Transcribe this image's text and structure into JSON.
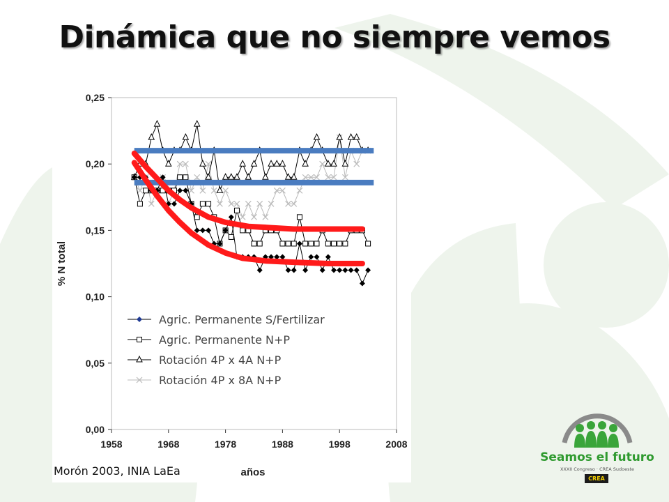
{
  "slide": {
    "title": "Dinámica que no siempre vemos",
    "source": "Morón 2003, INIA LaEa"
  },
  "logo": {
    "name": "Seamos el futuro",
    "subtitle": "XXXII Congreso · CREA Sudoeste",
    "badge": "CREA"
  },
  "chart_data": {
    "type": "line",
    "title": "",
    "xlabel": "años",
    "ylabel": "% N total",
    "xlim": [
      1958,
      2008
    ],
    "ylim": [
      0,
      0.25
    ],
    "x_ticks": [
      1958,
      1968,
      1978,
      1988,
      1998,
      2008
    ],
    "y_ticks": [
      "0,00",
      "0,05",
      "0,10",
      "0,15",
      "0,20",
      "0,25"
    ],
    "legend_position": "bottom-left",
    "series": [
      {
        "name": "Agric. Permanente S/Fertilizar",
        "marker": "diamond-filled",
        "color": "#000000",
        "legend_marker_color": "#1f3a93",
        "x": [
          1962,
          1963,
          1964,
          1965,
          1966,
          1967,
          1968,
          1969,
          1970,
          1971,
          1972,
          1973,
          1974,
          1975,
          1976,
          1977,
          1978,
          1979,
          1980,
          1981,
          1982,
          1983,
          1984,
          1985,
          1986,
          1987,
          1988,
          1989,
          1990,
          1991,
          1992,
          1993,
          1994,
          1995,
          1996,
          1997,
          1998,
          1999,
          2000,
          2001,
          2002,
          2003
        ],
        "values": [
          0.19,
          0.19,
          0.19,
          0.18,
          0.18,
          0.19,
          0.17,
          0.17,
          0.18,
          0.18,
          0.17,
          0.15,
          0.15,
          0.15,
          0.14,
          0.14,
          0.15,
          0.16,
          0.13,
          0.13,
          0.13,
          0.13,
          0.12,
          0.13,
          0.13,
          0.13,
          0.13,
          0.12,
          0.12,
          0.14,
          0.12,
          0.13,
          0.13,
          0.12,
          0.13,
          0.12,
          0.12,
          0.12,
          0.12,
          0.12,
          0.11,
          0.12
        ]
      },
      {
        "name": "Agric. Permanente N+P",
        "marker": "square-open",
        "color": "#000000",
        "x": [
          1962,
          1963,
          1964,
          1965,
          1966,
          1967,
          1968,
          1969,
          1970,
          1971,
          1972,
          1973,
          1974,
          1975,
          1976,
          1977,
          1978,
          1979,
          1980,
          1981,
          1982,
          1983,
          1984,
          1985,
          1986,
          1987,
          1988,
          1989,
          1990,
          1991,
          1992,
          1993,
          1994,
          1995,
          1996,
          1997,
          1998,
          1999,
          2000,
          2001,
          2002,
          2003
        ],
        "values": [
          0.19,
          0.17,
          0.18,
          0.18,
          0.18,
          0.18,
          0.18,
          0.18,
          0.19,
          0.19,
          0.17,
          0.16,
          0.17,
          0.17,
          0.16,
          0.14,
          0.15,
          0.145,
          0.165,
          0.15,
          0.15,
          0.14,
          0.14,
          0.15,
          0.15,
          0.15,
          0.14,
          0.14,
          0.14,
          0.16,
          0.14,
          0.14,
          0.14,
          0.15,
          0.14,
          0.14,
          0.14,
          0.14,
          0.15,
          0.15,
          0.15,
          0.14
        ]
      },
      {
        "name": "Rotación 4P x 4A N+P",
        "marker": "triangle-open",
        "color": "#000000",
        "x": [
          1962,
          1963,
          1964,
          1965,
          1966,
          1967,
          1968,
          1969,
          1970,
          1971,
          1972,
          1973,
          1974,
          1975,
          1976,
          1977,
          1978,
          1979,
          1980,
          1981,
          1982,
          1983,
          1984,
          1985,
          1986,
          1987,
          1988,
          1989,
          1990,
          1991,
          1992,
          1993,
          1994,
          1995,
          1996,
          1997,
          1998,
          1999,
          2000,
          2001,
          2002,
          2003
        ],
        "values": [
          0.19,
          0.2,
          0.2,
          0.22,
          0.23,
          0.21,
          0.2,
          0.21,
          0.21,
          0.22,
          0.21,
          0.23,
          0.2,
          0.19,
          0.21,
          0.18,
          0.19,
          0.19,
          0.19,
          0.2,
          0.19,
          0.2,
          0.21,
          0.19,
          0.2,
          0.2,
          0.2,
          0.19,
          0.19,
          0.21,
          0.2,
          0.21,
          0.22,
          0.21,
          0.2,
          0.2,
          0.22,
          0.2,
          0.22,
          0.22,
          0.21,
          0.21
        ]
      },
      {
        "name": "Rotación 4P x 8A N+P",
        "marker": "x",
        "color": "#bbbbbb",
        "x": [
          1962,
          1963,
          1964,
          1965,
          1966,
          1967,
          1968,
          1969,
          1970,
          1971,
          1972,
          1973,
          1974,
          1975,
          1976,
          1977,
          1978,
          1979,
          1980,
          1981,
          1982,
          1983,
          1984,
          1985,
          1986,
          1987,
          1988,
          1989,
          1990,
          1991,
          1992,
          1993,
          1994,
          1995,
          1996,
          1997,
          1998,
          1999,
          2000,
          2001,
          2002,
          2003
        ],
        "values": [
          0.19,
          0.18,
          0.19,
          0.17,
          0.18,
          0.19,
          0.17,
          0.18,
          0.2,
          0.2,
          0.18,
          0.19,
          0.18,
          0.2,
          0.18,
          0.17,
          0.18,
          0.17,
          0.17,
          0.16,
          0.17,
          0.16,
          0.17,
          0.16,
          0.17,
          0.18,
          0.18,
          0.17,
          0.17,
          0.18,
          0.19,
          0.19,
          0.19,
          0.2,
          0.19,
          0.19,
          0.22,
          0.19,
          0.21,
          0.2,
          0.21,
          0.21
        ]
      }
    ],
    "trend_overlays": [
      {
        "kind": "horizontal-line",
        "color": "#4a7cc0",
        "y": 0.21,
        "x": [
          1962,
          2004
        ]
      },
      {
        "kind": "horizontal-line",
        "color": "#4a7cc0",
        "y": 0.186,
        "x": [
          1962,
          2004
        ]
      },
      {
        "kind": "decay-curve",
        "color": "#ff1a1a",
        "x": [
          1962,
          1964,
          1966,
          1968,
          1970,
          1972,
          1975,
          1978,
          1982,
          1986,
          1990,
          1996,
          2002
        ],
        "values": [
          0.208,
          0.198,
          0.189,
          0.18,
          0.173,
          0.167,
          0.16,
          0.156,
          0.153,
          0.152,
          0.151,
          0.151,
          0.151
        ]
      },
      {
        "kind": "decay-curve",
        "color": "#ff1a1a",
        "x": [
          1962,
          1964,
          1966,
          1968,
          1970,
          1972,
          1975,
          1978,
          1981,
          1985,
          1990,
          1996,
          2002
        ],
        "values": [
          0.201,
          0.188,
          0.176,
          0.165,
          0.156,
          0.148,
          0.139,
          0.133,
          0.129,
          0.127,
          0.126,
          0.125,
          0.125
        ]
      }
    ]
  }
}
